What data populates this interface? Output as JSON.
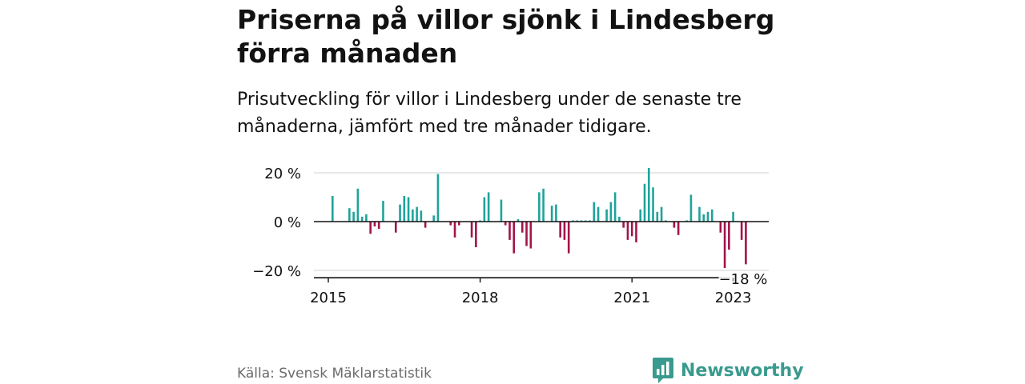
{
  "header": {
    "title": "Priserna på villor sjönk i Lindesberg förra månaden",
    "subtitle": "Prisutveckling för villor i Lindesberg under de senaste tre månaderna, jämfört med tre månader tidigare."
  },
  "footer": {
    "source": "Källa: Svensk Mäklarstatistik",
    "brand": "Newsworthy"
  },
  "colors": {
    "positive": "#1fa39a",
    "negative": "#a3154a",
    "grid": "#d9d9d9",
    "axis": "#121212",
    "brand": "#3a9a8e"
  },
  "chart_data": {
    "type": "bar",
    "title": "",
    "xlabel": "",
    "ylabel": "",
    "ylim": [
      -20,
      20
    ],
    "y_ticks": [
      {
        "value": 20,
        "label": "20 %"
      },
      {
        "value": 0,
        "label": "0 %"
      },
      {
        "value": -20,
        "label": "−20 %"
      }
    ],
    "x_ticks": [
      {
        "value": "2015-01",
        "label": "2015"
      },
      {
        "value": "2018-01",
        "label": "2018"
      },
      {
        "value": "2021-01",
        "label": "2021"
      },
      {
        "value": "2023-01",
        "label": "2023"
      }
    ],
    "last_value_label": "−18 %",
    "grid": true,
    "series": [
      {
        "values": [
          {
            "x": "2015-02",
            "y": 10.5
          },
          {
            "x": "2015-06",
            "y": 5.5
          },
          {
            "x": "2015-07",
            "y": 4
          },
          {
            "x": "2015-08",
            "y": 13.5
          },
          {
            "x": "2015-09",
            "y": 2
          },
          {
            "x": "2015-10",
            "y": 3
          },
          {
            "x": "2015-11",
            "y": -5
          },
          {
            "x": "2015-12",
            "y": -2
          },
          {
            "x": "2016-01",
            "y": -3
          },
          {
            "x": "2016-02",
            "y": 8.5
          },
          {
            "x": "2016-05",
            "y": -4.5
          },
          {
            "x": "2016-06",
            "y": 7
          },
          {
            "x": "2016-07",
            "y": 10.5
          },
          {
            "x": "2016-08",
            "y": 10
          },
          {
            "x": "2016-09",
            "y": 5
          },
          {
            "x": "2016-10",
            "y": 6
          },
          {
            "x": "2016-11",
            "y": 4.5
          },
          {
            "x": "2016-12",
            "y": -2.5
          },
          {
            "x": "2017-02",
            "y": 2.5
          },
          {
            "x": "2017-03",
            "y": 19.5
          },
          {
            "x": "2017-06",
            "y": -1.5
          },
          {
            "x": "2017-07",
            "y": -6.5
          },
          {
            "x": "2017-08",
            "y": -1.5
          },
          {
            "x": "2017-11",
            "y": -6.5
          },
          {
            "x": "2017-12",
            "y": -10.5
          },
          {
            "x": "2018-01",
            "y": 0.5
          },
          {
            "x": "2018-02",
            "y": 10
          },
          {
            "x": "2018-03",
            "y": 12
          },
          {
            "x": "2018-06",
            "y": 9
          },
          {
            "x": "2018-07",
            "y": -1.5
          },
          {
            "x": "2018-08",
            "y": -7.5
          },
          {
            "x": "2018-09",
            "y": -13
          },
          {
            "x": "2018-10",
            "y": 1
          },
          {
            "x": "2018-11",
            "y": -4.5
          },
          {
            "x": "2018-12",
            "y": -10
          },
          {
            "x": "2019-01",
            "y": -11
          },
          {
            "x": "2019-03",
            "y": 12
          },
          {
            "x": "2019-04",
            "y": 13.5
          },
          {
            "x": "2019-06",
            "y": 6.5
          },
          {
            "x": "2019-07",
            "y": 7
          },
          {
            "x": "2019-08",
            "y": -6.5
          },
          {
            "x": "2019-09",
            "y": -7.5
          },
          {
            "x": "2019-10",
            "y": -13
          },
          {
            "x": "2019-11",
            "y": 0.5
          },
          {
            "x": "2019-12",
            "y": 0.5
          },
          {
            "x": "2020-01",
            "y": 0.5
          },
          {
            "x": "2020-02",
            "y": 0.5
          },
          {
            "x": "2020-03",
            "y": 0.5
          },
          {
            "x": "2020-04",
            "y": 8
          },
          {
            "x": "2020-05",
            "y": 6
          },
          {
            "x": "2020-07",
            "y": 5
          },
          {
            "x": "2020-08",
            "y": 8
          },
          {
            "x": "2020-09",
            "y": 12
          },
          {
            "x": "2020-10",
            "y": 2
          },
          {
            "x": "2020-11",
            "y": -2.5
          },
          {
            "x": "2020-12",
            "y": -7.5
          },
          {
            "x": "2021-01",
            "y": -6
          },
          {
            "x": "2021-02",
            "y": -8.5
          },
          {
            "x": "2021-03",
            "y": 5
          },
          {
            "x": "2021-04",
            "y": 15.5
          },
          {
            "x": "2021-05",
            "y": 22
          },
          {
            "x": "2021-06",
            "y": 14
          },
          {
            "x": "2021-07",
            "y": 4
          },
          {
            "x": "2021-08",
            "y": 6
          },
          {
            "x": "2021-09",
            "y": 0.5
          },
          {
            "x": "2021-11",
            "y": -2.5
          },
          {
            "x": "2021-12",
            "y": -5.5
          },
          {
            "x": "2022-02",
            "y": 0.5
          },
          {
            "x": "2022-03",
            "y": 11
          },
          {
            "x": "2022-05",
            "y": 6
          },
          {
            "x": "2022-06",
            "y": 3
          },
          {
            "x": "2022-07",
            "y": 4
          },
          {
            "x": "2022-08",
            "y": 5
          },
          {
            "x": "2022-10",
            "y": -4.5
          },
          {
            "x": "2022-11",
            "y": -19
          },
          {
            "x": "2022-12",
            "y": -11.5
          },
          {
            "x": "2023-01",
            "y": 4
          },
          {
            "x": "2023-03",
            "y": -7.5
          },
          {
            "x": "2023-04",
            "y": -17.5
          }
        ]
      }
    ]
  }
}
